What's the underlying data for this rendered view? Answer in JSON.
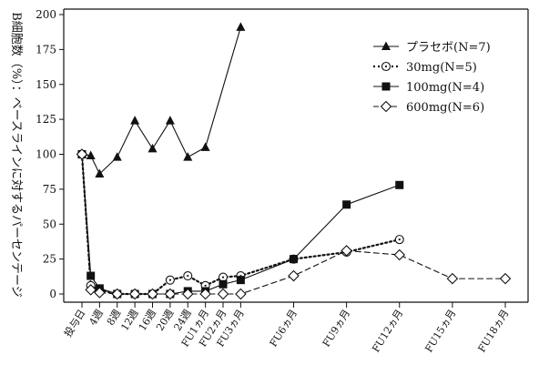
{
  "chart_data": {
    "type": "line",
    "ylabel": "B細胞数（%）：ベースラインに対するパーセンテージ",
    "ylim": [
      0,
      200
    ],
    "yticks": [
      0,
      25,
      50,
      75,
      100,
      125,
      150,
      175,
      200
    ],
    "x_ticks": [
      {
        "x": 0,
        "label": "投与日"
      },
      {
        "x": 1,
        "label": "4週"
      },
      {
        "x": 2,
        "label": "8週"
      },
      {
        "x": 3,
        "label": "12週"
      },
      {
        "x": 4,
        "label": "16週"
      },
      {
        "x": 5,
        "label": "20週"
      },
      {
        "x": 6,
        "label": "24週"
      },
      {
        "x": 7,
        "label": "FU1ヵ月"
      },
      {
        "x": 8,
        "label": "FU2ヵ月"
      },
      {
        "x": 9,
        "label": "FU3ヵ月"
      },
      {
        "x": 12,
        "label": "FU6ヵ月"
      },
      {
        "x": 15,
        "label": "FU9ヵ月"
      },
      {
        "x": 18,
        "label": "FU12ヵ月"
      },
      {
        "x": 21,
        "label": "FU15ヵ月"
      },
      {
        "x": 24,
        "label": "FU18ヵ月"
      }
    ],
    "xlim": [
      0,
      24
    ],
    "legend_position": "top-right",
    "series": [
      {
        "name": "プラセボ(N=7)",
        "marker": "triangle",
        "line": "solid",
        "color": "#111111",
        "points": [
          [
            0,
            100
          ],
          [
            0.5,
            99
          ],
          [
            1,
            86
          ],
          [
            2,
            98
          ],
          [
            3,
            124
          ],
          [
            4,
            104
          ],
          [
            5,
            124
          ],
          [
            6,
            98
          ],
          [
            7,
            105
          ],
          [
            9,
            191
          ]
        ]
      },
      {
        "name": "30mg(N=5)",
        "marker": "circle-dot",
        "line": "dotted",
        "color": "#111111",
        "points": [
          [
            0,
            100
          ],
          [
            0.5,
            6
          ],
          [
            1,
            3
          ],
          [
            2,
            0
          ],
          [
            3,
            0
          ],
          [
            4,
            0
          ],
          [
            5,
            10
          ],
          [
            6,
            13
          ],
          [
            7,
            6
          ],
          [
            8,
            12
          ],
          [
            9,
            13
          ],
          [
            12,
            25
          ],
          [
            15,
            30
          ],
          [
            18,
            39
          ]
        ]
      },
      {
        "name": "100mg(N=4)",
        "marker": "square",
        "line": "solid",
        "color": "#111111",
        "points": [
          [
            0,
            100
          ],
          [
            0.5,
            13
          ],
          [
            1,
            4
          ],
          [
            2,
            0
          ],
          [
            3,
            0
          ],
          [
            4,
            0
          ],
          [
            5,
            0
          ],
          [
            6,
            2
          ],
          [
            7,
            2
          ],
          [
            8,
            7
          ],
          [
            9,
            10
          ],
          [
            12,
            25
          ],
          [
            15,
            64
          ],
          [
            18,
            78
          ]
        ]
      },
      {
        "name": "600mg(N=6)",
        "marker": "diamond",
        "line": "dashed",
        "color": "#111111",
        "points": [
          [
            0,
            100
          ],
          [
            0.5,
            3
          ],
          [
            1,
            1
          ],
          [
            2,
            0
          ],
          [
            3,
            0
          ],
          [
            4,
            0
          ],
          [
            5,
            0
          ],
          [
            6,
            0
          ],
          [
            7,
            0
          ],
          [
            8,
            0
          ],
          [
            9,
            0
          ],
          [
            12,
            13
          ],
          [
            15,
            31
          ],
          [
            18,
            28
          ],
          [
            21,
            11
          ],
          [
            24,
            11
          ]
        ]
      }
    ]
  }
}
